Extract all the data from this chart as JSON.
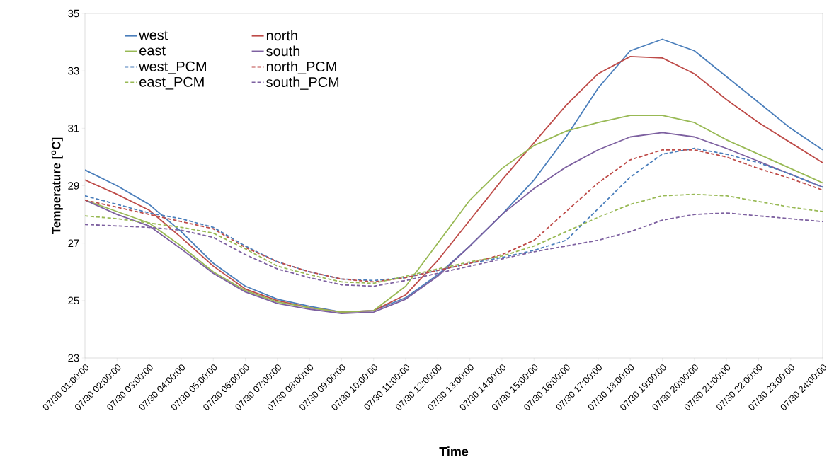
{
  "chart_data": {
    "type": "line",
    "xlabel": "Time",
    "ylabel": "Temperature [$^{o}$C]",
    "categories": [
      "07/30 01:00:00",
      "07/30 02:00:00",
      "07/30 03:00:00",
      "07/30 04:00:00",
      "07/30 05:00:00",
      "07/30 06:00:00",
      "07/30 07:00:00",
      "07/30 08:00:00",
      "07/30 09:00:00",
      "07/30 10:00:00",
      "07/30 11:00:00",
      "07/30 12:00:00",
      "07/30 13:00:00",
      "07/30 14:00:00",
      "07/30 15:00:00",
      "07/30 16:00:00",
      "07/30 17:00:00",
      "07/30 18:00:00",
      "07/30 19:00:00",
      "07/30 20:00:00",
      "07/30 21:00:00",
      "07/30 22:00:00",
      "07/30 23:00:00",
      "07/30 24:00:00"
    ],
    "ylim": [
      23,
      35
    ],
    "yticks": [
      23,
      25,
      27,
      29,
      31,
      33,
      35
    ],
    "legend": "top left",
    "series": [
      {
        "name": "west",
        "color": "#4a7ebb",
        "line_style": "solid",
        "values": [
          29.55,
          29.0,
          28.35,
          27.4,
          26.3,
          25.5,
          25.05,
          24.8,
          24.6,
          24.65,
          25.1,
          25.9,
          26.9,
          28.0,
          29.2,
          30.7,
          32.4,
          33.7,
          34.1,
          33.7,
          32.8,
          31.9,
          31.0,
          30.25
        ]
      },
      {
        "name": "north",
        "color": "#be4b48",
        "line_style": "solid",
        "values": [
          29.2,
          28.7,
          28.15,
          27.2,
          26.2,
          25.4,
          25.0,
          24.75,
          24.6,
          24.65,
          25.2,
          26.4,
          27.8,
          29.2,
          30.5,
          31.8,
          32.9,
          33.5,
          33.45,
          32.9,
          32.0,
          31.2,
          30.5,
          29.8
        ]
      },
      {
        "name": "east",
        "color": "#98b954",
        "line_style": "solid",
        "values": [
          28.5,
          28.1,
          27.7,
          26.9,
          26.0,
          25.35,
          24.95,
          24.75,
          24.6,
          24.65,
          25.5,
          27.0,
          28.5,
          29.6,
          30.4,
          30.9,
          31.2,
          31.45,
          31.45,
          31.2,
          30.6,
          30.1,
          29.6,
          29.1
        ]
      },
      {
        "name": "south",
        "color": "#7d60a0",
        "line_style": "solid",
        "values": [
          28.5,
          28.0,
          27.6,
          26.8,
          25.95,
          25.3,
          24.9,
          24.7,
          24.55,
          24.6,
          25.05,
          25.85,
          26.9,
          28.0,
          28.9,
          29.65,
          30.25,
          30.7,
          30.85,
          30.7,
          30.3,
          29.85,
          29.4,
          28.95
        ]
      },
      {
        "name": "west_PCM",
        "color": "#4a7ebb",
        "line_style": "dashed",
        "values": [
          28.65,
          28.35,
          28.05,
          27.85,
          27.55,
          26.9,
          26.35,
          26.0,
          25.75,
          25.7,
          25.8,
          26.05,
          26.3,
          26.5,
          26.75,
          27.1,
          28.2,
          29.3,
          30.1,
          30.3,
          30.1,
          29.8,
          29.4,
          28.95
        ]
      },
      {
        "name": "north_PCM",
        "color": "#be4b48",
        "line_style": "dashed",
        "values": [
          28.5,
          28.25,
          28.0,
          27.75,
          27.5,
          26.85,
          26.35,
          26.0,
          25.75,
          25.65,
          25.8,
          26.05,
          26.3,
          26.6,
          27.1,
          28.1,
          29.1,
          29.9,
          30.25,
          30.25,
          30.0,
          29.6,
          29.25,
          28.85
        ]
      },
      {
        "name": "east_PCM",
        "color": "#98b954",
        "line_style": "dashed",
        "values": [
          27.95,
          27.85,
          27.7,
          27.55,
          27.35,
          26.8,
          26.2,
          25.9,
          25.65,
          25.6,
          25.85,
          26.1,
          26.35,
          26.55,
          26.9,
          27.4,
          27.9,
          28.35,
          28.65,
          28.7,
          28.65,
          28.45,
          28.25,
          28.1
        ]
      },
      {
        "name": "south_PCM",
        "color": "#7d60a0",
        "line_style": "dashed",
        "values": [
          27.65,
          27.6,
          27.55,
          27.45,
          27.2,
          26.6,
          26.1,
          25.8,
          25.55,
          25.5,
          25.7,
          25.95,
          26.2,
          26.45,
          26.7,
          26.9,
          27.1,
          27.4,
          27.8,
          28.0,
          28.05,
          27.95,
          27.85,
          27.75
        ]
      }
    ]
  }
}
